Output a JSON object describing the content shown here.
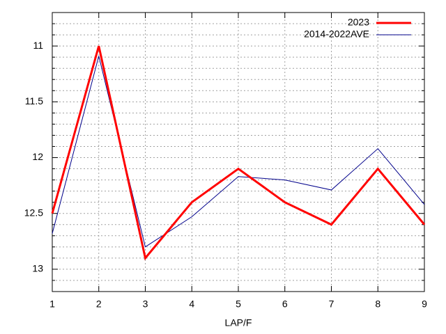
{
  "chart_data": {
    "type": "line",
    "x_label": "LAP/F",
    "x": [
      1,
      2,
      3,
      4,
      5,
      6,
      7,
      8,
      9
    ],
    "series": [
      {
        "name": "2023",
        "color": "#ff0000",
        "values": [
          12.5,
          11.0,
          12.9,
          12.4,
          12.1,
          12.4,
          12.6,
          12.1,
          12.6
        ]
      },
      {
        "name": "2014-2022AVE",
        "color": "#00008b",
        "values": [
          12.68,
          11.09,
          12.8,
          12.53,
          12.17,
          12.2,
          12.29,
          11.92,
          12.42
        ]
      }
    ],
    "xlim": [
      1,
      9
    ],
    "xticks": [
      1,
      2,
      3,
      4,
      5,
      6,
      7,
      8,
      9
    ],
    "ylim": [
      13.2,
      10.7
    ],
    "yticks": [
      11,
      11.5,
      12,
      12.5,
      13
    ],
    "yminorticks": [
      10.8,
      10.9,
      11.1,
      11.2,
      11.3,
      11.4,
      11.6,
      11.7,
      11.8,
      11.9,
      12.1,
      12.2,
      12.3,
      12.4,
      12.6,
      12.7,
      12.8,
      12.9,
      13.1
    ],
    "grid": true,
    "legend": "top-right"
  }
}
